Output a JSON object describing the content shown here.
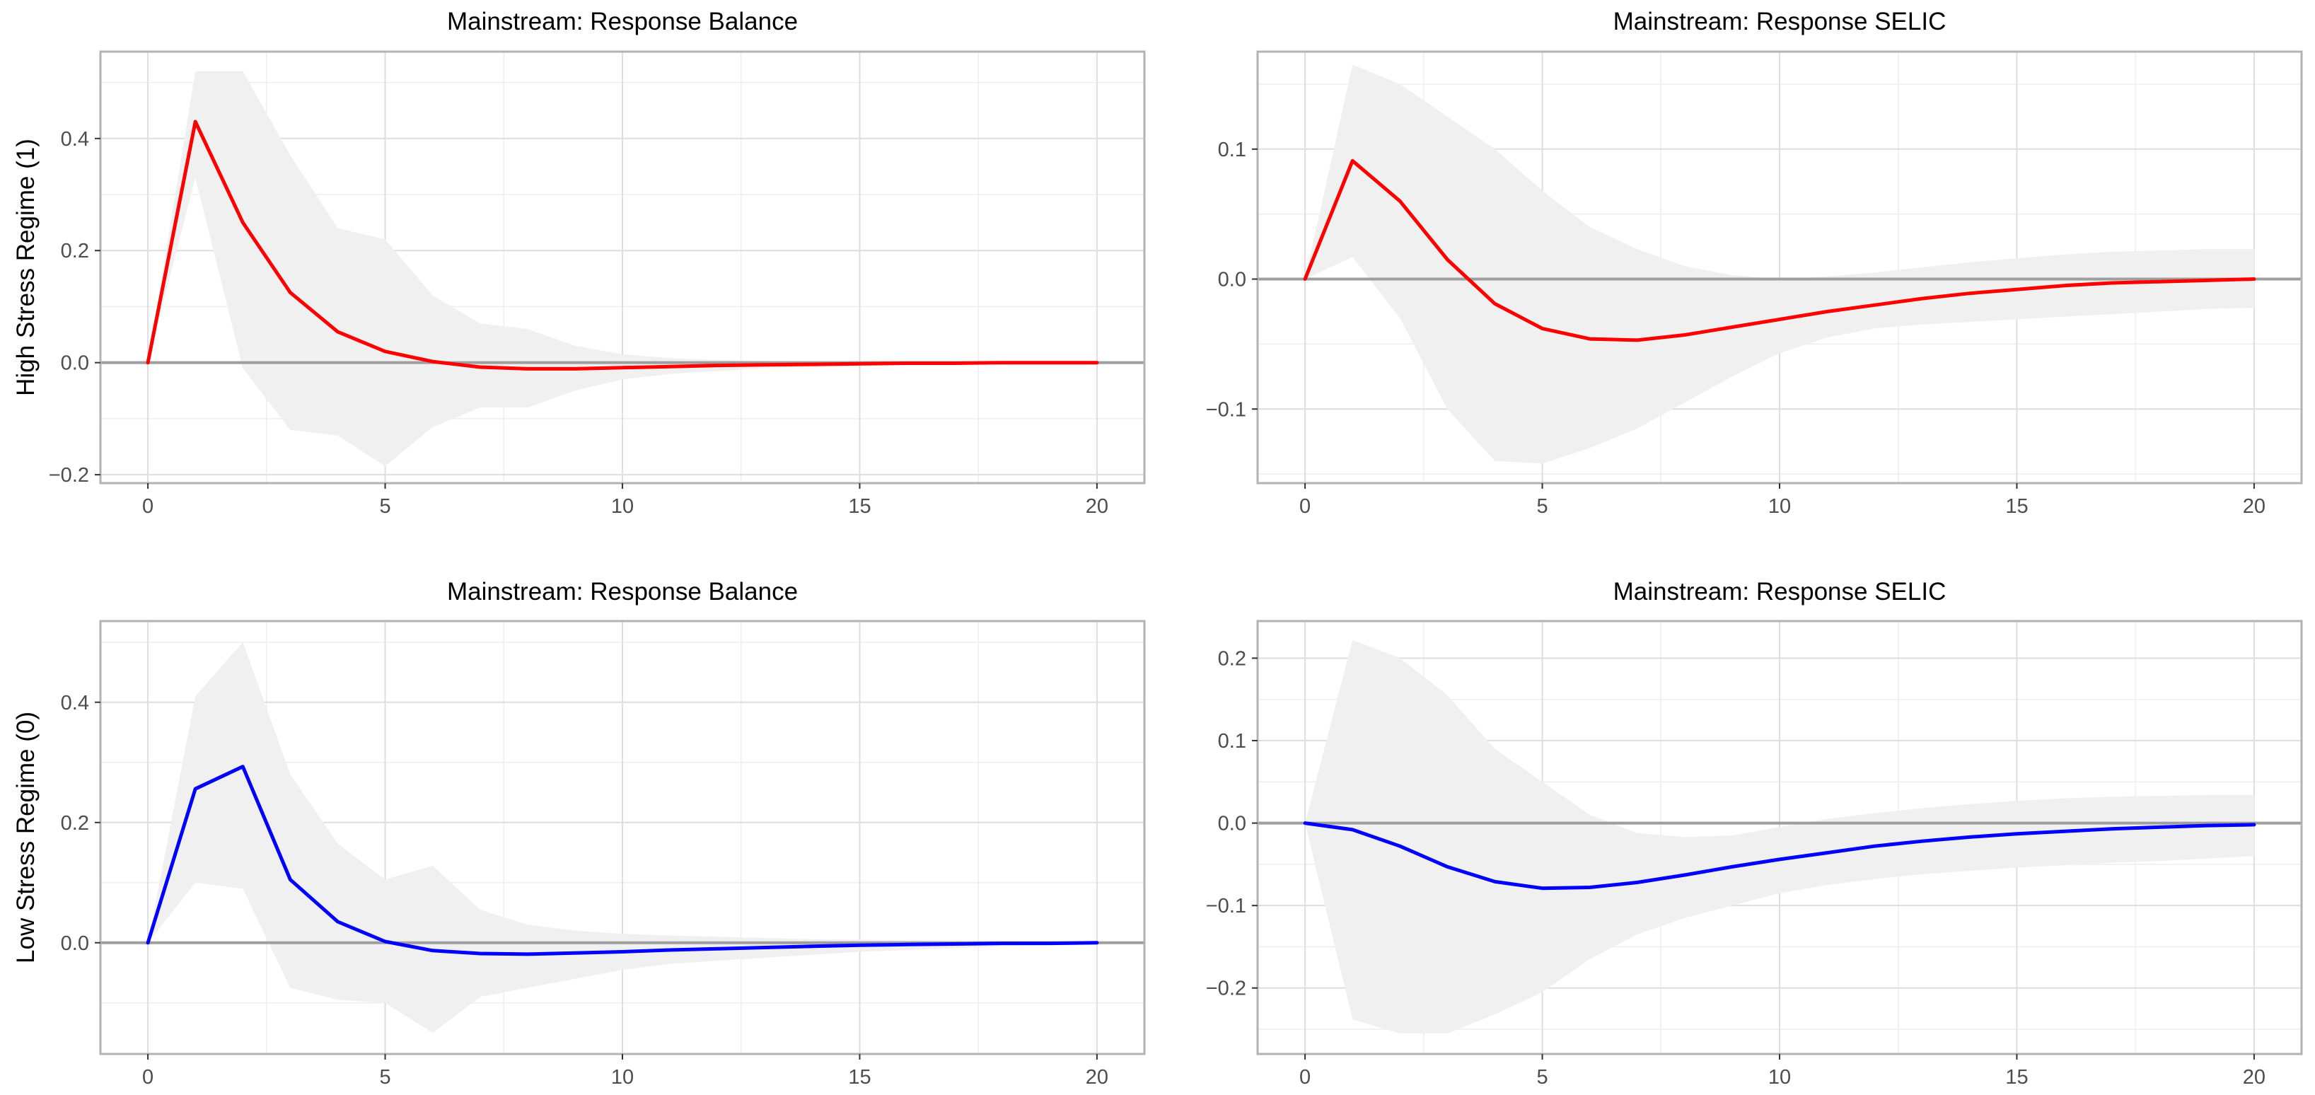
{
  "figure": {
    "row_labels": [
      "High Stress Regime (1)",
      "Low Stress Regime (0)"
    ]
  },
  "chart_data": [
    {
      "type": "line",
      "title": "Mainstream: Response Balance",
      "ylabel": "High Stress Regime (1)",
      "xlabel": "",
      "xlim": [
        -1,
        21
      ],
      "ylim": [
        -0.215,
        0.555
      ],
      "xticks": [
        0,
        5,
        10,
        15,
        20
      ],
      "yticks": [
        -0.2,
        0.0,
        0.2,
        0.4
      ],
      "ytick_labels": [
        "−0.2",
        "0.0",
        "0.2",
        "0.4"
      ],
      "xtick_labels": [
        "0",
        "5",
        "10",
        "15",
        "20"
      ],
      "line_color": "#ff0000",
      "x": [
        0,
        1,
        2,
        3,
        4,
        5,
        6,
        7,
        8,
        9,
        10,
        11,
        12,
        13,
        14,
        15,
        16,
        17,
        18,
        19,
        20
      ],
      "response": [
        0.0,
        0.43,
        0.25,
        0.125,
        0.055,
        0.02,
        0.002,
        -0.008,
        -0.011,
        -0.011,
        -0.009,
        -0.007,
        -0.005,
        -0.004,
        -0.003,
        -0.002,
        -0.001,
        -0.001,
        0.0,
        0.0,
        0.0
      ],
      "upper": [
        0.0,
        0.52,
        0.52,
        0.37,
        0.24,
        0.22,
        0.12,
        0.07,
        0.06,
        0.03,
        0.015,
        0.008,
        0.005,
        0.003,
        0.002,
        0.002,
        0.001,
        0.001,
        0.001,
        0.001,
        0.001
      ],
      "lower": [
        0.0,
        0.33,
        -0.01,
        -0.12,
        -0.13,
        -0.185,
        -0.115,
        -0.08,
        -0.08,
        -0.05,
        -0.03,
        -0.02,
        -0.015,
        -0.01,
        -0.008,
        -0.006,
        -0.004,
        -0.003,
        -0.002,
        -0.001,
        -0.001
      ]
    },
    {
      "type": "line",
      "title": "Mainstream: Response SELIC",
      "ylabel": "",
      "xlabel": "",
      "xlim": [
        -1,
        21
      ],
      "ylim": [
        -0.157,
        0.175
      ],
      "xticks": [
        0,
        5,
        10,
        15,
        20
      ],
      "yticks": [
        -0.1,
        0.0,
        0.1
      ],
      "ytick_labels": [
        "−0.1",
        "0.0",
        "0.1"
      ],
      "xtick_labels": [
        "0",
        "5",
        "10",
        "15",
        "20"
      ],
      "line_color": "#ff0000",
      "x": [
        0,
        1,
        2,
        3,
        4,
        5,
        6,
        7,
        8,
        9,
        10,
        11,
        12,
        13,
        14,
        15,
        16,
        17,
        18,
        19,
        20
      ],
      "response": [
        0.0,
        0.091,
        0.06,
        0.015,
        -0.019,
        -0.038,
        -0.046,
        -0.047,
        -0.043,
        -0.037,
        -0.031,
        -0.025,
        -0.02,
        -0.015,
        -0.011,
        -0.008,
        -0.005,
        -0.003,
        -0.002,
        -0.001,
        0.0
      ],
      "upper": [
        0.0,
        0.165,
        0.15,
        0.125,
        0.1,
        0.068,
        0.04,
        0.023,
        0.01,
        0.003,
        0.0,
        0.002,
        0.005,
        0.009,
        0.013,
        0.016,
        0.019,
        0.021,
        0.022,
        0.023,
        0.023
      ],
      "lower": [
        0.0,
        0.017,
        -0.03,
        -0.1,
        -0.14,
        -0.142,
        -0.13,
        -0.115,
        -0.095,
        -0.075,
        -0.057,
        -0.045,
        -0.038,
        -0.035,
        -0.033,
        -0.031,
        -0.029,
        -0.027,
        -0.025,
        -0.023,
        -0.022
      ]
    },
    {
      "type": "line",
      "title": "Mainstream: Response Balance",
      "ylabel": "Low Stress Regime (0)",
      "xlabel": "",
      "xlim": [
        -1,
        21
      ],
      "ylim": [
        -0.185,
        0.535
      ],
      "xticks": [
        0,
        5,
        10,
        15,
        20
      ],
      "yticks": [
        0.0,
        0.2,
        0.4
      ],
      "ytick_labels": [
        "0.0",
        "0.2",
        "0.4"
      ],
      "xtick_labels": [
        "0",
        "5",
        "10",
        "15",
        "20"
      ],
      "line_color": "#0000ff",
      "x": [
        0,
        1,
        2,
        3,
        4,
        5,
        6,
        7,
        8,
        9,
        10,
        11,
        12,
        13,
        14,
        15,
        16,
        17,
        18,
        19,
        20
      ],
      "response": [
        0.0,
        0.256,
        0.293,
        0.105,
        0.035,
        0.002,
        -0.013,
        -0.018,
        -0.019,
        -0.017,
        -0.015,
        -0.012,
        -0.01,
        -0.008,
        -0.006,
        -0.004,
        -0.003,
        -0.002,
        -0.001,
        -0.001,
        0.0
      ],
      "upper": [
        0.0,
        0.41,
        0.5,
        0.28,
        0.165,
        0.105,
        0.128,
        0.055,
        0.03,
        0.02,
        0.015,
        0.012,
        0.01,
        0.008,
        0.006,
        0.005,
        0.004,
        0.003,
        0.002,
        0.002,
        0.001
      ],
      "lower": [
        0.0,
        0.1,
        0.09,
        -0.075,
        -0.095,
        -0.1,
        -0.15,
        -0.09,
        -0.075,
        -0.06,
        -0.045,
        -0.035,
        -0.03,
        -0.025,
        -0.02,
        -0.015,
        -0.012,
        -0.009,
        -0.006,
        -0.004,
        -0.002
      ]
    },
    {
      "type": "line",
      "title": "Mainstream: Response SELIC",
      "ylabel": "",
      "xlabel": "",
      "xlim": [
        -1,
        21
      ],
      "ylim": [
        -0.28,
        0.245
      ],
      "xticks": [
        0,
        5,
        10,
        15,
        20
      ],
      "yticks": [
        -0.2,
        -0.1,
        0.0,
        0.1,
        0.2
      ],
      "ytick_labels": [
        "−0.2",
        "−0.1",
        "0.0",
        "0.1",
        "0.2"
      ],
      "xtick_labels": [
        "0",
        "5",
        "10",
        "15",
        "20"
      ],
      "line_color": "#0000ff",
      "x": [
        0,
        1,
        2,
        3,
        4,
        5,
        6,
        7,
        8,
        9,
        10,
        11,
        12,
        13,
        14,
        15,
        16,
        17,
        18,
        19,
        20
      ],
      "response": [
        0.0,
        -0.008,
        -0.028,
        -0.053,
        -0.071,
        -0.079,
        -0.078,
        -0.072,
        -0.063,
        -0.053,
        -0.044,
        -0.036,
        -0.028,
        -0.022,
        -0.017,
        -0.013,
        -0.01,
        -0.007,
        -0.005,
        -0.003,
        -0.002
      ],
      "upper": [
        0.0,
        0.222,
        0.2,
        0.155,
        0.09,
        0.05,
        0.01,
        -0.012,
        -0.017,
        -0.015,
        -0.005,
        0.005,
        0.012,
        0.018,
        0.023,
        0.027,
        0.03,
        0.032,
        0.033,
        0.034,
        0.034
      ],
      "lower": [
        0.0,
        -0.238,
        -0.255,
        -0.255,
        -0.232,
        -0.205,
        -0.165,
        -0.135,
        -0.115,
        -0.1,
        -0.085,
        -0.075,
        -0.068,
        -0.062,
        -0.058,
        -0.054,
        -0.051,
        -0.048,
        -0.046,
        -0.043,
        -0.04
      ]
    }
  ]
}
